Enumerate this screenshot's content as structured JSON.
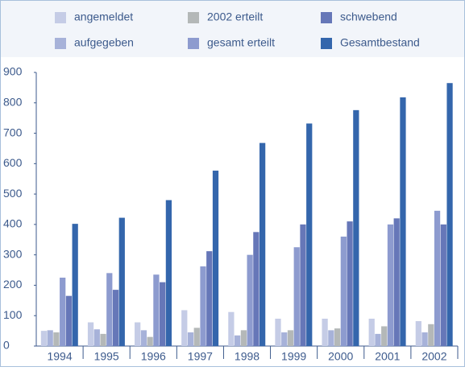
{
  "chart_data": {
    "type": "bar",
    "categories": [
      "1994",
      "1995",
      "1996",
      "1997",
      "1998",
      "1999",
      "2000",
      "2001",
      "2002"
    ],
    "series": [
      {
        "name": "angemeldet",
        "color": "#c5cce6",
        "values": [
          50,
          78,
          78,
          118,
          112,
          90,
          90,
          90,
          82
        ]
      },
      {
        "name": "aufgegeben",
        "color": "#a7b2d9",
        "values": [
          52,
          55,
          52,
          45,
          35,
          45,
          52,
          40,
          45
        ]
      },
      {
        "name": "2002 erteilt",
        "color": "#b4b8b8",
        "values": [
          45,
          40,
          30,
          60,
          52,
          52,
          58,
          65,
          72
        ]
      },
      {
        "name": "gesamt erteilt",
        "color": "#8d9bcf",
        "values": [
          225,
          240,
          235,
          262,
          300,
          325,
          360,
          400,
          445
        ]
      },
      {
        "name": "schwebend",
        "color": "#6677b8",
        "values": [
          165,
          185,
          210,
          312,
          375,
          400,
          410,
          420,
          400
        ]
      },
      {
        "name": "Gesamtbestand",
        "color": "#3466ac",
        "values": [
          402,
          422,
          480,
          577,
          668,
          732,
          776,
          818,
          865
        ]
      }
    ],
    "legend_order": [
      0,
      2,
      4,
      1,
      3,
      5
    ],
    "ylim": [
      0,
      900
    ],
    "yticks": [
      0,
      100,
      200,
      300,
      400,
      500,
      600,
      700,
      800,
      900
    ],
    "grid": false
  }
}
